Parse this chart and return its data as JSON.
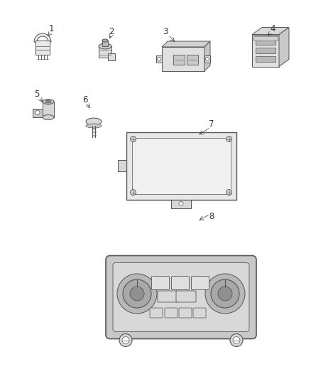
{
  "background_color": "#ffffff",
  "line_color": "#555555",
  "number_color": "#333333",
  "figure_width": 4.38,
  "figure_height": 5.33,
  "dpi": 100,
  "label_fontsize": 8.5
}
